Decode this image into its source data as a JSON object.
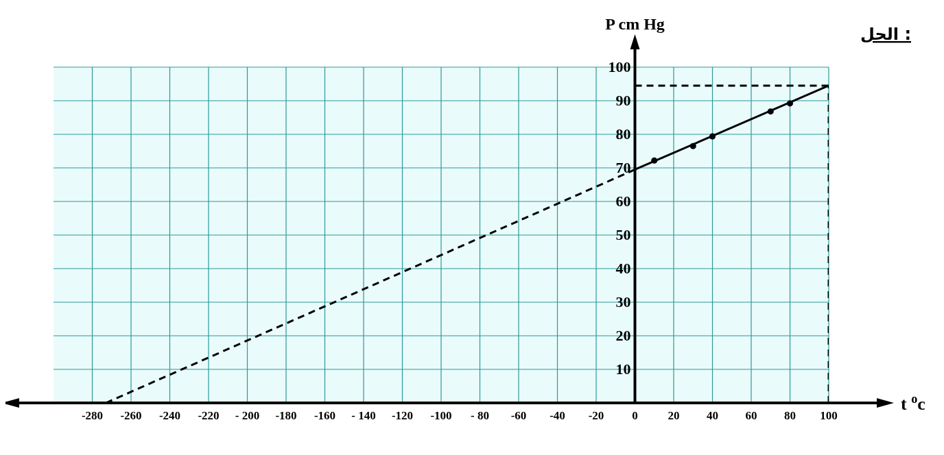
{
  "chart_data": {
    "type": "scatter",
    "title": "الحل :",
    "xlabel": "t $^{o}$c",
    "ylabel": "P cm Hg",
    "xlim": [
      -300,
      100
    ],
    "ylim": [
      0,
      100
    ],
    "xticks": [
      {
        "value": -280,
        "label": "-280"
      },
      {
        "value": -260,
        "label": "-260"
      },
      {
        "value": -240,
        "label": "-240"
      },
      {
        "value": -220,
        "label": "-220"
      },
      {
        "value": -200,
        "label": "- 200"
      },
      {
        "value": -180,
        "label": "-180"
      },
      {
        "value": -160,
        "label": "-160"
      },
      {
        "value": -140,
        "label": "- 140"
      },
      {
        "value": -120,
        "label": "-120"
      },
      {
        "value": -100,
        "label": "-100"
      },
      {
        "value": -80,
        "label": "- 80"
      },
      {
        "value": -60,
        "label": "-60"
      },
      {
        "value": -40,
        "label": "-40"
      },
      {
        "value": -20,
        "label": "-20"
      },
      0,
      20,
      40,
      60,
      80,
      100
    ],
    "yticks": [
      10,
      20,
      30,
      40,
      50,
      60,
      70,
      80,
      90,
      100
    ],
    "grid": true,
    "series": [
      {
        "color": "#000000",
        "marker": "circle",
        "x": [
          10,
          30,
          40,
          70,
          80
        ],
        "values": [
          72.2,
          76.5,
          79.4,
          86.8,
          89.2
        ]
      },
      {
        "type": "line",
        "color": "#000000",
        "line_style": "solid",
        "marker": "none",
        "x": [
          0,
          100
        ],
        "values": [
          69.5,
          94.5
        ]
      },
      {
        "type": "line",
        "color": "#000000",
        "line_style": "dashed",
        "marker": "none",
        "x": [
          -273,
          0
        ],
        "values": [
          0,
          69.5
        ]
      },
      {
        "type": "line",
        "color": "#000000",
        "line_style": "dashed",
        "marker": "none",
        "x": [
          0,
          100
        ],
        "values": [
          94.5,
          94.5
        ]
      },
      {
        "type": "line",
        "color": "#000000",
        "line_style": "dashed",
        "marker": "none",
        "x": [
          100,
          100
        ],
        "values": [
          0,
          94.5
        ]
      }
    ]
  }
}
